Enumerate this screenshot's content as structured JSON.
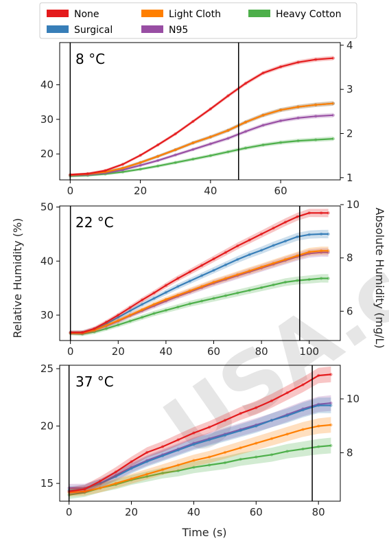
{
  "x_label": "Time (s)",
  "y_left_label": "Relative Humidity (%)",
  "y_right_label": "Absolute Humidity (mg/L)",
  "watermark": "USA.com",
  "legend": [
    {
      "label": "None",
      "color": "#e41a1c"
    },
    {
      "label": "Surgical",
      "color": "#377eb8"
    },
    {
      "label": "Light Cloth",
      "color": "#ff7f00"
    },
    {
      "label": "N95",
      "color": "#984ea3"
    },
    {
      "label": "Heavy Cotton",
      "color": "#4daf4a"
    }
  ],
  "chart_data": [
    {
      "type": "line",
      "title": "8 °C",
      "xlim": [
        -3,
        77
      ],
      "ylim": [
        12.5,
        52.2
      ],
      "y2lim": [
        0.95,
        4.06
      ],
      "xticks": [
        0,
        20,
        40,
        60
      ],
      "yticks": [
        20,
        30,
        40
      ],
      "y2ticks": [
        1,
        2,
        3,
        4
      ],
      "vlines": [
        0,
        48
      ],
      "x": [
        0,
        5,
        10,
        15,
        20,
        25,
        30,
        35,
        40,
        45,
        50,
        55,
        60,
        65,
        70,
        75
      ],
      "series": [
        {
          "name": "None",
          "values": [
            14.0,
            14.3,
            15.2,
            17.0,
            19.6,
            22.6,
            25.8,
            29.4,
            33.0,
            36.8,
            40.4,
            43.4,
            45.2,
            46.5,
            47.3,
            47.7
          ]
        },
        {
          "name": "Surgical",
          "values": [
            13.9,
            14.2,
            14.8,
            15.9,
            17.5,
            19.3,
            21.2,
            23.2,
            24.9,
            26.8,
            29.2,
            31.2,
            32.7,
            33.6,
            34.2,
            34.6
          ]
        },
        {
          "name": "Light Cloth",
          "values": [
            13.9,
            14.2,
            14.8,
            15.9,
            17.5,
            19.3,
            21.2,
            23.2,
            24.9,
            26.8,
            29.2,
            31.2,
            32.7,
            33.6,
            34.2,
            34.6
          ]
        },
        {
          "name": "N95",
          "values": [
            13.8,
            14.0,
            14.5,
            15.4,
            16.7,
            18.1,
            19.7,
            21.3,
            22.9,
            24.5,
            26.5,
            28.3,
            29.6,
            30.4,
            30.9,
            31.2
          ]
        },
        {
          "name": "Heavy Cotton",
          "values": [
            13.6,
            13.8,
            14.2,
            14.8,
            15.6,
            16.5,
            17.5,
            18.5,
            19.5,
            20.6,
            21.7,
            22.6,
            23.3,
            23.8,
            24.1,
            24.4
          ]
        }
      ]
    },
    {
      "type": "line",
      "title": "22 °C",
      "xlim": [
        -4.5,
        113
      ],
      "ylim": [
        25.3,
        50.2
      ],
      "y2lim": [
        4.9,
        9.95
      ],
      "xticks": [
        0,
        20,
        40,
        60,
        80,
        100
      ],
      "yticks": [
        30,
        40,
        50
      ],
      "y2ticks": [
        6,
        8,
        10
      ],
      "vlines": [
        0,
        96
      ],
      "x": [
        0,
        5,
        10,
        15,
        20,
        25,
        30,
        35,
        40,
        45,
        50,
        55,
        60,
        65,
        70,
        75,
        80,
        85,
        90,
        95,
        100,
        105,
        108
      ],
      "series": [
        {
          "name": "None",
          "values": [
            26.8,
            26.8,
            27.5,
            28.7,
            30.0,
            31.4,
            32.8,
            34.1,
            35.5,
            36.8,
            38.0,
            39.2,
            40.4,
            41.6,
            42.8,
            43.9,
            45.0,
            46.1,
            47.2,
            48.2,
            48.9,
            48.9,
            48.9
          ]
        },
        {
          "name": "Surgical",
          "values": [
            26.8,
            26.8,
            27.4,
            28.4,
            29.6,
            30.8,
            32.0,
            33.1,
            34.2,
            35.3,
            36.3,
            37.3,
            38.3,
            39.3,
            40.3,
            41.2,
            42.0,
            42.9,
            43.7,
            44.5,
            44.9,
            45.0,
            45.0
          ]
        },
        {
          "name": "Light Cloth",
          "values": [
            26.7,
            26.7,
            27.2,
            28.1,
            29.0,
            30.0,
            31.0,
            32.0,
            32.9,
            33.7,
            34.5,
            35.3,
            36.1,
            36.8,
            37.5,
            38.2,
            38.9,
            39.6,
            40.3,
            41.0,
            41.7,
            41.9,
            41.9
          ]
        },
        {
          "name": "N95",
          "values": [
            26.7,
            26.7,
            27.2,
            28.0,
            28.9,
            29.9,
            30.8,
            31.7,
            32.6,
            33.5,
            34.3,
            35.1,
            35.9,
            36.6,
            37.3,
            38.0,
            38.7,
            39.4,
            40.1,
            40.8,
            41.4,
            41.6,
            41.6
          ]
        },
        {
          "name": "Heavy Cotton",
          "values": [
            26.6,
            26.5,
            26.9,
            27.5,
            28.2,
            28.9,
            29.6,
            30.3,
            30.9,
            31.5,
            32.1,
            32.6,
            33.1,
            33.6,
            34.1,
            34.6,
            35.1,
            35.6,
            36.1,
            36.4,
            36.6,
            36.8,
            36.8
          ]
        }
      ]
    },
    {
      "type": "line",
      "title": "37 °C",
      "xlim": [
        -3,
        87
      ],
      "ylim": [
        13.45,
        25.3
      ],
      "y2lim": [
        6.2,
        11.25
      ],
      "xticks": [
        0,
        20,
        40,
        60,
        80
      ],
      "yticks": [
        15,
        20,
        25
      ],
      "y2ticks": [
        8,
        10
      ],
      "vlines": [
        0,
        78
      ],
      "x": [
        0,
        5,
        10,
        15,
        20,
        25,
        30,
        35,
        40,
        45,
        50,
        55,
        60,
        65,
        70,
        75,
        80,
        84
      ],
      "series": [
        {
          "name": "None",
          "values": [
            14.3,
            14.5,
            15.2,
            16.0,
            16.9,
            17.7,
            18.2,
            18.8,
            19.4,
            19.9,
            20.5,
            21.1,
            21.6,
            22.2,
            22.9,
            23.6,
            24.4,
            24.5
          ]
        },
        {
          "name": "Surgical",
          "values": [
            14.4,
            14.5,
            15.0,
            15.6,
            16.3,
            16.9,
            17.4,
            17.9,
            18.4,
            18.8,
            19.2,
            19.6,
            20.0,
            20.5,
            20.9,
            21.4,
            21.8,
            21.8
          ]
        },
        {
          "name": "Light Cloth",
          "values": [
            14.2,
            14.3,
            14.6,
            15.0,
            15.4,
            15.8,
            16.2,
            16.6,
            17.0,
            17.3,
            17.7,
            18.1,
            18.5,
            18.9,
            19.3,
            19.7,
            20.0,
            20.1
          ]
        },
        {
          "name": "N95",
          "values": [
            14.6,
            14.6,
            15.0,
            15.7,
            16.4,
            17.0,
            17.5,
            18.0,
            18.5,
            18.9,
            19.3,
            19.7,
            20.1,
            20.5,
            21.0,
            21.5,
            21.9,
            22.0
          ]
        },
        {
          "name": "Heavy Cotton",
          "values": [
            14.0,
            14.2,
            14.6,
            14.9,
            15.3,
            15.6,
            15.9,
            16.1,
            16.4,
            16.6,
            16.8,
            17.1,
            17.3,
            17.5,
            17.8,
            18.0,
            18.2,
            18.3
          ]
        }
      ]
    }
  ]
}
